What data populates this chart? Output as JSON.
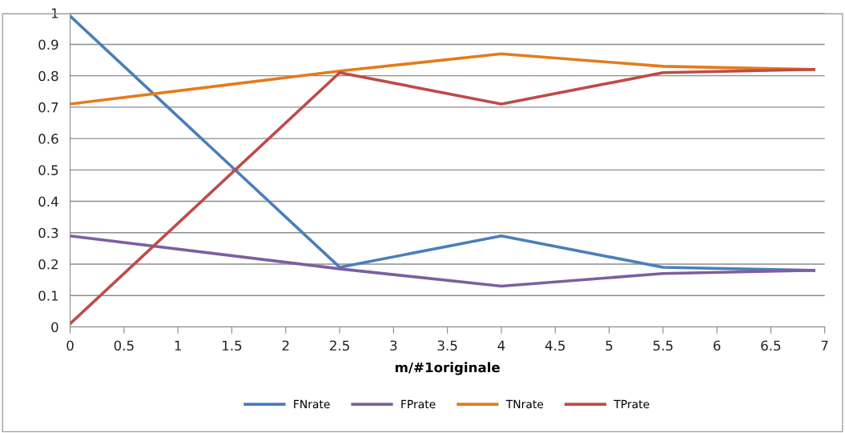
{
  "chart_data": {
    "type": "line",
    "xlabel": "m/#1originale",
    "x": [
      0,
      2.5,
      4,
      5.5,
      6.9
    ],
    "series": [
      {
        "name": "FNrate",
        "color": "#4a7ebb",
        "values": [
          0.99,
          0.19,
          0.29,
          0.19,
          0.18
        ]
      },
      {
        "name": "FPrate",
        "color": "#7d5fa0",
        "values": [
          0.29,
          0.185,
          0.13,
          0.17,
          0.18
        ]
      },
      {
        "name": "TNrate",
        "color": "#e47b1c",
        "values": [
          0.71,
          0.815,
          0.87,
          0.83,
          0.82
        ]
      },
      {
        "name": "TPrate",
        "color": "#be4b48",
        "values": [
          0.01,
          0.81,
          0.71,
          0.81,
          0.82
        ]
      }
    ],
    "xlim": [
      0,
      7
    ],
    "xticks": [
      0,
      0.5,
      1,
      1.5,
      2,
      2.5,
      3,
      3.5,
      4,
      4.5,
      5,
      5.5,
      6,
      6.5,
      7
    ],
    "ylim": [
      0,
      1
    ],
    "yticks": [
      0,
      0.1,
      0.2,
      0.3,
      0.4,
      0.5,
      0.6,
      0.7,
      0.8,
      0.9,
      1
    ],
    "grid": "y",
    "legend": "bottom",
    "marker": "none",
    "line_style": "solid"
  }
}
